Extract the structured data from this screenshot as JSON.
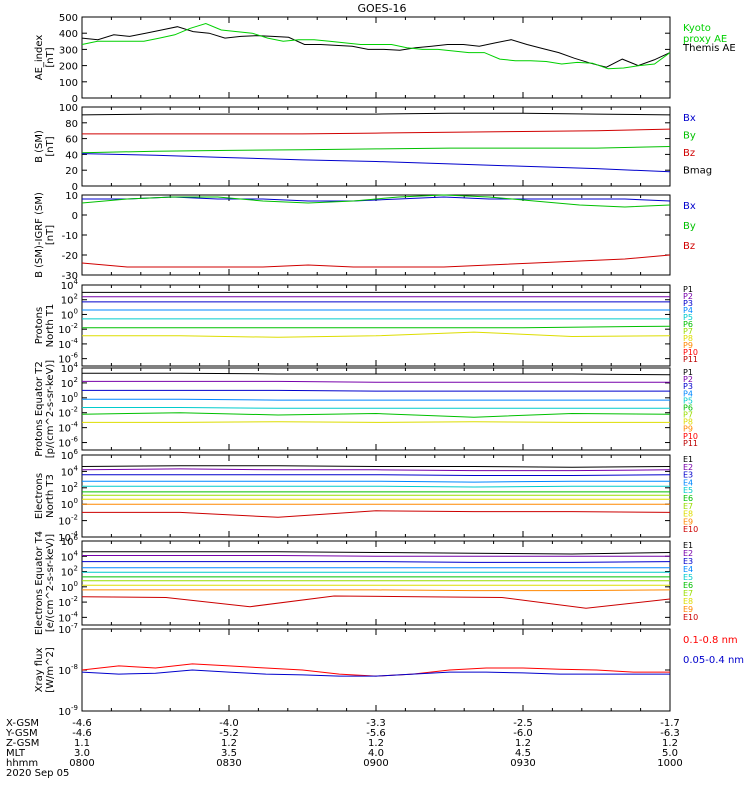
{
  "title": "GOES-16",
  "chart_data": [
    {
      "type": "line",
      "id": "ae",
      "ylabel": "AE_index [nT]",
      "ylim": [
        0,
        500
      ],
      "yticks": [
        "0",
        "100",
        "200",
        "300",
        "400",
        "500"
      ],
      "legend": [
        {
          "name": "Kyoto\nproxy AE",
          "color": "#00d000"
        },
        {
          "name": "Themis AE",
          "color": "#000000"
        }
      ],
      "series": [
        {
          "name": "Themis AE",
          "color": "#000000",
          "values": [
            370,
            360,
            390,
            380,
            400,
            420,
            440,
            410,
            400,
            370,
            380,
            385,
            380,
            375,
            330,
            330,
            325,
            320,
            300,
            300,
            295,
            310,
            320,
            330,
            330,
            320,
            340,
            360,
            330,
            305,
            280,
            245,
            215,
            190,
            240,
            200,
            235,
            280
          ]
        },
        {
          "name": "Kyoto proxy AE",
          "color": "#00d000",
          "values": [
            330,
            350,
            350,
            350,
            350,
            370,
            390,
            430,
            460,
            420,
            410,
            400,
            370,
            350,
            360,
            360,
            350,
            340,
            330,
            330,
            330,
            310,
            300,
            300,
            290,
            280,
            280,
            240,
            230,
            230,
            225,
            210,
            220,
            215,
            180,
            185,
            200,
            210,
            280
          ]
        }
      ]
    },
    {
      "type": "line",
      "id": "bsm",
      "ylabel": "B (SM) [nT]",
      "ylim": [
        0,
        100
      ],
      "yticks": [
        "0",
        "20",
        "40",
        "60",
        "80",
        "100"
      ],
      "legend": [
        {
          "name": "Bx",
          "color": "#0000cc"
        },
        {
          "name": "By",
          "color": "#00c000"
        },
        {
          "name": "Bz",
          "color": "#d00000"
        },
        {
          "name": "Bmag",
          "color": "#000000"
        }
      ],
      "series": [
        {
          "name": "Bmag",
          "color": "#000000",
          "values": [
            90,
            91,
            91,
            91,
            91,
            92,
            92,
            91,
            90
          ]
        },
        {
          "name": "Bz",
          "color": "#d00000",
          "values": [
            66,
            66,
            66,
            66,
            67,
            68,
            69,
            70,
            72
          ]
        },
        {
          "name": "By",
          "color": "#00c000",
          "values": [
            42,
            44,
            45,
            46,
            47,
            48,
            48,
            48,
            50
          ]
        },
        {
          "name": "Bx",
          "color": "#0000cc",
          "values": [
            41,
            39,
            36,
            33,
            31,
            28,
            25,
            22,
            18
          ]
        }
      ]
    },
    {
      "type": "line",
      "id": "bigrf",
      "ylabel": "B (SM)-IGRF (SM) [nT]",
      "ylim": [
        -30,
        10
      ],
      "yticks": [
        "-30",
        "-20",
        "-10",
        "0",
        "10"
      ],
      "legend": [
        {
          "name": "Bx",
          "color": "#0000cc"
        },
        {
          "name": "By",
          "color": "#00c000"
        },
        {
          "name": "Bz",
          "color": "#d00000"
        }
      ],
      "series": [
        {
          "name": "Bx",
          "color": "#0000cc",
          "values": [
            8,
            8,
            9,
            8,
            8,
            7,
            7,
            8,
            9,
            8,
            8,
            8,
            8,
            7
          ]
        },
        {
          "name": "By",
          "color": "#00c000",
          "values": [
            6,
            8,
            9,
            9,
            7,
            6,
            7,
            9,
            11,
            9,
            7,
            5,
            4,
            5
          ]
        },
        {
          "name": "Bz",
          "color": "#d00000",
          "values": [
            -24,
            -26,
            -26,
            -26,
            -26,
            -25,
            -26,
            -26,
            -26,
            -25,
            -24,
            -23,
            -22,
            -20
          ]
        }
      ]
    },
    {
      "type": "line",
      "id": "p_north",
      "ylabel": "Protons North T1",
      "log": true,
      "ylim": [
        -7,
        4
      ],
      "yticks": [
        "10^-6",
        "10^-4",
        "10^-2",
        "10^0",
        "10^2",
        "10^4"
      ],
      "legend": [
        {
          "name": "P1",
          "color": "#000000"
        },
        {
          "name": "P2",
          "color": "#7700aa"
        },
        {
          "name": "P3",
          "color": "#0000cc"
        },
        {
          "name": "P4",
          "color": "#0088ff"
        },
        {
          "name": "P5",
          "color": "#00cccc"
        },
        {
          "name": "P6",
          "color": "#00c000"
        },
        {
          "name": "P7",
          "color": "#99dd00"
        },
        {
          "name": "P8",
          "color": "#dddd00"
        },
        {
          "name": "P9",
          "color": "#ff8800"
        },
        {
          "name": "P10",
          "color": "#ff0000"
        },
        {
          "name": "P11",
          "color": "#bb0000"
        }
      ],
      "series": [
        {
          "name": "P1",
          "color": "#000000",
          "values": [
            3.0,
            3.0,
            3.0,
            3.0,
            3.0
          ]
        },
        {
          "name": "P2",
          "color": "#7700aa",
          "values": [
            2.4,
            2.4,
            2.4,
            2.4,
            2.4
          ]
        },
        {
          "name": "P3",
          "color": "#0000cc",
          "values": [
            1.7,
            1.7,
            1.7,
            1.7,
            1.7
          ]
        },
        {
          "name": "P4",
          "color": "#0088ff",
          "values": [
            0.6,
            0.6,
            0.6,
            0.6,
            0.6
          ]
        },
        {
          "name": "P5",
          "color": "#00cccc",
          "values": [
            -0.6,
            -0.6,
            -0.6,
            -0.6,
            -0.6
          ]
        },
        {
          "name": "P6",
          "color": "#00c000",
          "values": [
            -1.8,
            -1.8,
            -1.8,
            -1.8,
            -1.6
          ]
        },
        {
          "name": "P7",
          "color": "#dddd00",
          "values": [
            -2.9,
            -2.9,
            -3.1,
            -2.9,
            -2.4,
            -3.0,
            -2.9
          ]
        }
      ]
    },
    {
      "type": "line",
      "id": "p_equator",
      "ylabel": "Protons Equator T2 [p/(cm^2-s-sr-keV)]",
      "log": true,
      "ylim": [
        -7,
        4
      ],
      "yticks": [
        "10^-6",
        "10^-4",
        "10^-2",
        "10^0",
        "10^2",
        "10^4"
      ],
      "legend": [
        {
          "name": "P1",
          "color": "#000000"
        },
        {
          "name": "P2",
          "color": "#7700aa"
        },
        {
          "name": "P3",
          "color": "#0000cc"
        },
        {
          "name": "P4",
          "color": "#0088ff"
        },
        {
          "name": "P5",
          "color": "#00cccc"
        },
        {
          "name": "P6",
          "color": "#00c000"
        },
        {
          "name": "P7",
          "color": "#99dd00"
        },
        {
          "name": "P8",
          "color": "#dddd00"
        },
        {
          "name": "P9",
          "color": "#ff8800"
        },
        {
          "name": "P10",
          "color": "#ff0000"
        },
        {
          "name": "P11",
          "color": "#bb0000"
        }
      ],
      "series": [
        {
          "name": "P1",
          "color": "#000000",
          "values": [
            3.3,
            3.3,
            3.2,
            3.2,
            3.2,
            3.2,
            3.1
          ]
        },
        {
          "name": "P2",
          "color": "#7700aa",
          "values": [
            2.2,
            2.2,
            2.2,
            2.1,
            2.1,
            2.1,
            2.1
          ]
        },
        {
          "name": "P3",
          "color": "#0000cc",
          "values": [
            1.0,
            1.0,
            1.0,
            0.9,
            0.9,
            0.9,
            0.9
          ]
        },
        {
          "name": "P4",
          "color": "#0088ff",
          "values": [
            -0.2,
            -0.2,
            -0.3,
            -0.3,
            -0.3,
            -0.3,
            -0.3
          ]
        },
        {
          "name": "P5",
          "color": "#00cccc",
          "values": [
            -1.3,
            -1.3,
            -1.4,
            -1.4,
            -1.4,
            -1.4,
            -1.4
          ]
        },
        {
          "name": "P6",
          "color": "#00c000",
          "values": [
            -2.2,
            -2.0,
            -2.3,
            -2.1,
            -2.6,
            -2.1,
            -2.2
          ]
        },
        {
          "name": "P7",
          "color": "#dddd00",
          "values": [
            -3.3,
            -3.3,
            -3.2,
            -3.3,
            -3.2,
            -3.3,
            -3.3
          ]
        }
      ]
    },
    {
      "type": "line",
      "id": "e_north",
      "ylabel": "Electrons North T3",
      "log": true,
      "ylim": [
        -4,
        6
      ],
      "yticks": [
        "10^-4",
        "10^-2",
        "10^0",
        "10^2",
        "10^4",
        "10^6"
      ],
      "legend": [
        {
          "name": "E1",
          "color": "#000000"
        },
        {
          "name": "E2",
          "color": "#7700aa"
        },
        {
          "name": "E3",
          "color": "#0000cc"
        },
        {
          "name": "E4",
          "color": "#0088ff"
        },
        {
          "name": "E5",
          "color": "#00cccc"
        },
        {
          "name": "E6",
          "color": "#00c000"
        },
        {
          "name": "E7",
          "color": "#99dd00"
        },
        {
          "name": "E8",
          "color": "#dddd00"
        },
        {
          "name": "E9",
          "color": "#ff8800"
        },
        {
          "name": "E10",
          "color": "#cc0000"
        }
      ],
      "series": [
        {
          "name": "E1",
          "color": "#000000",
          "values": [
            4.6,
            4.7,
            4.7,
            4.6,
            4.6,
            4.5,
            4.6
          ]
        },
        {
          "name": "E2",
          "color": "#7700aa",
          "values": [
            4.2,
            4.3,
            4.2,
            4.2,
            4.1,
            4.1,
            4.2
          ]
        },
        {
          "name": "E3",
          "color": "#0000cc",
          "values": [
            3.6,
            3.6,
            3.6,
            3.6,
            3.5,
            3.5,
            3.6
          ]
        },
        {
          "name": "E4",
          "color": "#0088ff",
          "values": [
            2.8,
            2.8,
            2.8,
            2.8,
            2.7,
            2.8,
            2.8
          ]
        },
        {
          "name": "E5",
          "color": "#00cccc",
          "values": [
            2.2,
            2.2,
            2.2,
            2.2,
            2.1,
            2.2,
            2.2
          ]
        },
        {
          "name": "E6",
          "color": "#00c000",
          "values": [
            1.5,
            1.5,
            1.5,
            1.5,
            1.5,
            1.5,
            1.5
          ]
        },
        {
          "name": "E7",
          "color": "#99dd00",
          "values": [
            1.1,
            1.1,
            1.1,
            1.1,
            1.1,
            1.1,
            1.1
          ]
        },
        {
          "name": "E8",
          "color": "#dddd00",
          "values": [
            0.6,
            0.6,
            0.6,
            0.6,
            0.6,
            0.6,
            0.6
          ]
        },
        {
          "name": "E9",
          "color": "#ff8800",
          "values": [
            0.0,
            0.0,
            0.0,
            0.0,
            0.0,
            0.0,
            0.0
          ]
        },
        {
          "name": "E10",
          "color": "#cc0000",
          "values": [
            -1.0,
            -1.0,
            -1.6,
            -0.8,
            -0.9,
            -0.9,
            -1.0
          ]
        }
      ]
    },
    {
      "type": "line",
      "id": "e_equator",
      "ylabel": "Electrons Equator T4 [e/(cm^2-s-sr-keV)]",
      "log": true,
      "ylim": [
        -5,
        6
      ],
      "yticks": [
        "10^-4",
        "10^-2",
        "10^0",
        "10^2",
        "10^4",
        "10^6"
      ],
      "legend": [
        {
          "name": "E1",
          "color": "#000000"
        },
        {
          "name": "E2",
          "color": "#7700aa"
        },
        {
          "name": "E3",
          "color": "#0000cc"
        },
        {
          "name": "E4",
          "color": "#0088ff"
        },
        {
          "name": "E5",
          "color": "#00cccc"
        },
        {
          "name": "E6",
          "color": "#00c000"
        },
        {
          "name": "E7",
          "color": "#99dd00"
        },
        {
          "name": "E8",
          "color": "#dddd00"
        },
        {
          "name": "E9",
          "color": "#ff8800"
        },
        {
          "name": "E10",
          "color": "#cc0000"
        }
      ],
      "series": [
        {
          "name": "E1",
          "color": "#000000",
          "values": [
            4.6,
            4.6,
            4.6,
            4.5,
            4.4,
            4.3,
            4.5
          ]
        },
        {
          "name": "E2",
          "color": "#7700aa",
          "values": [
            4.1,
            4.1,
            4.1,
            4.0,
            4.0,
            4.0,
            4.0
          ]
        },
        {
          "name": "E3",
          "color": "#0000cc",
          "values": [
            3.3,
            3.3,
            3.3,
            3.3,
            3.2,
            3.2,
            3.3
          ]
        },
        {
          "name": "E4",
          "color": "#0088ff",
          "values": [
            2.5,
            2.5,
            2.5,
            2.5,
            2.5,
            2.5,
            2.5
          ]
        },
        {
          "name": "E5",
          "color": "#00cccc",
          "values": [
            1.9,
            1.9,
            1.9,
            1.9,
            1.9,
            1.9,
            1.9
          ]
        },
        {
          "name": "E6",
          "color": "#00c000",
          "values": [
            1.3,
            1.3,
            1.3,
            1.3,
            1.3,
            1.3,
            1.3
          ]
        },
        {
          "name": "E7",
          "color": "#99dd00",
          "values": [
            0.8,
            0.8,
            0.8,
            0.8,
            0.8,
            0.8,
            0.8
          ]
        },
        {
          "name": "E8",
          "color": "#dddd00",
          "values": [
            0.2,
            0.2,
            0.2,
            0.2,
            0.2,
            0.2,
            0.2
          ]
        },
        {
          "name": "E9",
          "color": "#ff8800",
          "values": [
            -0.4,
            -0.4,
            -0.4,
            -0.4,
            -0.5,
            -0.5,
            -0.4
          ]
        },
        {
          "name": "E10",
          "color": "#cc0000",
          "values": [
            -1.3,
            -1.4,
            -2.6,
            -1.2,
            -1.3,
            -1.4,
            -2.8,
            -1.6
          ]
        }
      ]
    },
    {
      "type": "line",
      "id": "xray",
      "ylabel": "Xray flux [W/m^2]",
      "log": true,
      "ylim": [
        -9,
        -7
      ],
      "yticks": [
        "10^-9",
        "10^-8",
        "10^-7"
      ],
      "legend": [
        {
          "name": "0.1-0.8 nm",
          "color": "#ff0000"
        },
        {
          "name": "0.05-0.4 nm",
          "color": "#0000cc"
        }
      ],
      "series": [
        {
          "name": "0.1-0.8 nm",
          "color": "#ff0000",
          "values": [
            -8.0,
            -7.9,
            -7.95,
            -7.85,
            -7.9,
            -7.95,
            -8.0,
            -8.1,
            -8.15,
            -8.1,
            -8.0,
            -7.95,
            -7.95,
            -7.98,
            -8.0,
            -8.05,
            -8.05
          ]
        },
        {
          "name": "0.05-0.4 nm",
          "color": "#0000cc",
          "values": [
            -8.05,
            -8.1,
            -8.08,
            -8.0,
            -8.05,
            -8.1,
            -8.12,
            -8.15,
            -8.15,
            -8.1,
            -8.05,
            -8.05,
            -8.07,
            -8.1,
            -8.1,
            -8.1,
            -8.1
          ]
        }
      ]
    }
  ],
  "x_axis": {
    "rows": [
      {
        "label": "X-GSM",
        "values": [
          "-4.6",
          "-4.0",
          "-3.3",
          "-2.5",
          "-1.7"
        ]
      },
      {
        "label": "Y-GSM",
        "values": [
          "-4.6",
          "-5.2",
          "-5.6",
          "-6.0",
          "-6.3"
        ]
      },
      {
        "label": "Z-GSM",
        "values": [
          "1.1",
          "1.2",
          "1.2",
          "1.2",
          "1.2"
        ]
      },
      {
        "label": "MLT",
        "values": [
          "3.0",
          "3.5",
          "4.0",
          "4.5",
          "5.0"
        ]
      },
      {
        "label": "hhmm",
        "values": [
          "0800",
          "0830",
          "0900",
          "0930",
          "1000"
        ]
      }
    ],
    "date": "2020 Sep 05"
  }
}
